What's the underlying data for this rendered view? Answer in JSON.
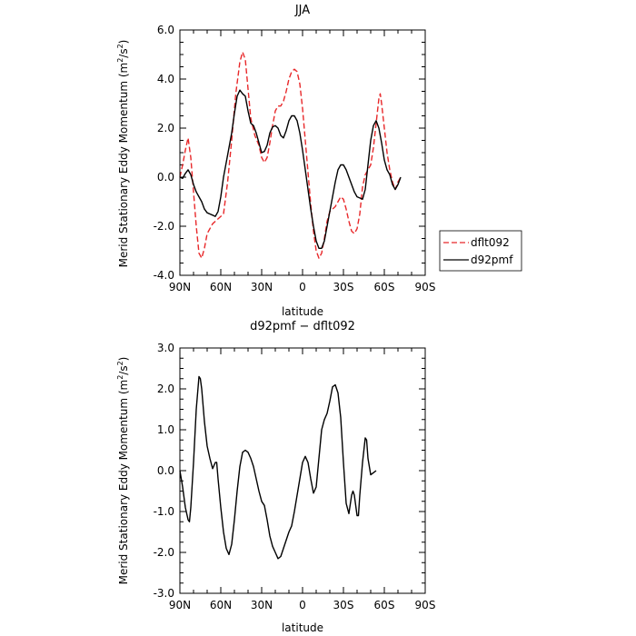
{
  "chart_data": [
    {
      "type": "line",
      "title": "JJA",
      "xlabel": "latitude",
      "ylabel": "Merid Stationary Eddy Momentum (m²/s²)",
      "ylabel_main": "Merid Stationary Eddy Momentum (m",
      "ylabel_sup": "2",
      "ylabel_mid": "/s",
      "ylabel_sup2": "2",
      "ylabel_end": ")",
      "xlim": [
        90,
        -90
      ],
      "ylim": [
        -4.0,
        6.0
      ],
      "xticks": [
        {
          "value": 90,
          "label": "90N"
        },
        {
          "value": 60,
          "label": "60N"
        },
        {
          "value": 30,
          "label": "30N"
        },
        {
          "value": 0,
          "label": "0"
        },
        {
          "value": -30,
          "label": "30S"
        },
        {
          "value": -60,
          "label": "60S"
        },
        {
          "value": -90,
          "label": "90S"
        }
      ],
      "yticks": [
        {
          "value": -4.0,
          "label": "-4.0"
        },
        {
          "value": -2.0,
          "label": "-2.0"
        },
        {
          "value": 0.0,
          "label": "0.0"
        },
        {
          "value": 2.0,
          "label": "2.0"
        },
        {
          "value": 4.0,
          "label": "4.0"
        },
        {
          "value": 6.0,
          "label": "6.0"
        }
      ],
      "legend_position": "right",
      "series": [
        {
          "name": "dflt092",
          "color": "#e8282a",
          "dash": "dashed",
          "points": [
            [
              90,
              0
            ],
            [
              88,
              0.5
            ],
            [
              86,
              1.1
            ],
            [
              84,
              1.6
            ],
            [
              82,
              0.8
            ],
            [
              80,
              -0.6
            ],
            [
              78,
              -2.0
            ],
            [
              76,
              -3.1
            ],
            [
              74,
              -3.3
            ],
            [
              72,
              -2.9
            ],
            [
              70,
              -2.3
            ],
            [
              66,
              -1.9
            ],
            [
              62,
              -1.7
            ],
            [
              58,
              -1.5
            ],
            [
              55,
              -0.2
            ],
            [
              52,
              1.5
            ],
            [
              49,
              3.4
            ],
            [
              46,
              4.7
            ],
            [
              44,
              5.1
            ],
            [
              42,
              4.8
            ],
            [
              40,
              3.6
            ],
            [
              38,
              2.4
            ],
            [
              35,
              1.7
            ],
            [
              32,
              1.3
            ],
            [
              30,
              0.8
            ],
            [
              28,
              0.6
            ],
            [
              26,
              0.8
            ],
            [
              24,
              1.4
            ],
            [
              22,
              2.1
            ],
            [
              20,
              2.7
            ],
            [
              18,
              2.9
            ],
            [
              16,
              2.9
            ],
            [
              14,
              3.1
            ],
            [
              12,
              3.5
            ],
            [
              10,
              4.0
            ],
            [
              8,
              4.3
            ],
            [
              6,
              4.4
            ],
            [
              4,
              4.3
            ],
            [
              2,
              3.8
            ],
            [
              0,
              2.8
            ],
            [
              -2,
              1.5
            ],
            [
              -4,
              0.2
            ],
            [
              -6,
              -1.1
            ],
            [
              -8,
              -2.2
            ],
            [
              -10,
              -3.0
            ],
            [
              -12,
              -3.3
            ],
            [
              -14,
              -3.1
            ],
            [
              -16,
              -2.5
            ],
            [
              -18,
              -1.8
            ],
            [
              -20,
              -1.4
            ],
            [
              -22,
              -1.3
            ],
            [
              -24,
              -1.2
            ],
            [
              -26,
              -1.0
            ],
            [
              -28,
              -0.8
            ],
            [
              -30,
              -0.9
            ],
            [
              -32,
              -1.3
            ],
            [
              -34,
              -1.8
            ],
            [
              -36,
              -2.2
            ],
            [
              -38,
              -2.3
            ],
            [
              -40,
              -2.1
            ],
            [
              -42,
              -1.5
            ],
            [
              -44,
              -0.4
            ],
            [
              -46,
              0.1
            ],
            [
              -48,
              0.3
            ],
            [
              -50,
              0.5
            ],
            [
              -52,
              1.2
            ],
            [
              -54,
              2.2
            ],
            [
              -56,
              3.2
            ],
            [
              -57,
              3.4
            ],
            [
              -58,
              3.0
            ],
            [
              -60,
              2.0
            ],
            [
              -62,
              1.0
            ],
            [
              -64,
              0.3
            ],
            [
              -66,
              -0.2
            ],
            [
              -68,
              -0.5
            ],
            [
              -70,
              -0.2
            ],
            [
              -72,
              0
            ]
          ]
        },
        {
          "name": "d92pmf",
          "color": "#000000",
          "dash": "solid",
          "points": [
            [
              90,
              0
            ],
            [
              88,
              -0.05
            ],
            [
              86,
              0.15
            ],
            [
              84,
              0.3
            ],
            [
              82,
              0.1
            ],
            [
              80,
              -0.3
            ],
            [
              78,
              -0.6
            ],
            [
              76,
              -0.8
            ],
            [
              74,
              -1.0
            ],
            [
              72,
              -1.3
            ],
            [
              70,
              -1.45
            ],
            [
              68,
              -1.5
            ],
            [
              66,
              -1.55
            ],
            [
              64,
              -1.6
            ],
            [
              62,
              -1.4
            ],
            [
              60,
              -0.8
            ],
            [
              58,
              0.0
            ],
            [
              55,
              0.9
            ],
            [
              52,
              1.8
            ],
            [
              50,
              2.6
            ],
            [
              48,
              3.3
            ],
            [
              46,
              3.55
            ],
            [
              44,
              3.4
            ],
            [
              42,
              3.3
            ],
            [
              40,
              2.7
            ],
            [
              38,
              2.2
            ],
            [
              36,
              2.1
            ],
            [
              34,
              1.8
            ],
            [
              32,
              1.4
            ],
            [
              30,
              1.0
            ],
            [
              28,
              1.05
            ],
            [
              26,
              1.3
            ],
            [
              24,
              1.8
            ],
            [
              22,
              2.05
            ],
            [
              20,
              2.1
            ],
            [
              18,
              2.0
            ],
            [
              16,
              1.7
            ],
            [
              14,
              1.6
            ],
            [
              12,
              1.9
            ],
            [
              10,
              2.3
            ],
            [
              8,
              2.5
            ],
            [
              6,
              2.5
            ],
            [
              4,
              2.3
            ],
            [
              2,
              1.8
            ],
            [
              0,
              1.1
            ],
            [
              -2,
              0.3
            ],
            [
              -4,
              -0.5
            ],
            [
              -6,
              -1.3
            ],
            [
              -8,
              -2.0
            ],
            [
              -10,
              -2.6
            ],
            [
              -12,
              -2.9
            ],
            [
              -14,
              -2.9
            ],
            [
              -16,
              -2.6
            ],
            [
              -18,
              -2.0
            ],
            [
              -20,
              -1.4
            ],
            [
              -22,
              -0.8
            ],
            [
              -24,
              -0.2
            ],
            [
              -26,
              0.3
            ],
            [
              -28,
              0.5
            ],
            [
              -30,
              0.5
            ],
            [
              -32,
              0.3
            ],
            [
              -34,
              0.0
            ],
            [
              -36,
              -0.3
            ],
            [
              -38,
              -0.6
            ],
            [
              -40,
              -0.8
            ],
            [
              -42,
              -0.85
            ],
            [
              -44,
              -0.9
            ],
            [
              -46,
              -0.5
            ],
            [
              -48,
              0.5
            ],
            [
              -50,
              1.5
            ],
            [
              -52,
              2.1
            ],
            [
              -54,
              2.3
            ],
            [
              -56,
              2.0
            ],
            [
              -58,
              1.4
            ],
            [
              -60,
              0.7
            ],
            [
              -62,
              0.3
            ],
            [
              -64,
              0.1
            ],
            [
              -66,
              -0.3
            ],
            [
              -68,
              -0.5
            ],
            [
              -70,
              -0.3
            ],
            [
              -72,
              0
            ]
          ]
        }
      ]
    },
    {
      "type": "line",
      "title": "d92pmf − dflt092",
      "xlabel": "latitude",
      "ylabel": "Merid Stationary Eddy Momentum (m²/s²)",
      "ylabel_main": "Merid Stationary Eddy Momentum (m",
      "ylabel_sup": "2",
      "ylabel_mid": "/s",
      "ylabel_sup2": "2",
      "ylabel_end": ")",
      "xlim": [
        90,
        -90
      ],
      "ylim": [
        -3.0,
        3.0
      ],
      "xticks": [
        {
          "value": 90,
          "label": "90N"
        },
        {
          "value": 60,
          "label": "60N"
        },
        {
          "value": 30,
          "label": "30N"
        },
        {
          "value": 0,
          "label": "0"
        },
        {
          "value": -30,
          "label": "30S"
        },
        {
          "value": -60,
          "label": "60S"
        },
        {
          "value": -90,
          "label": "90S"
        }
      ],
      "yticks": [
        {
          "value": -3.0,
          "label": "-3.0"
        },
        {
          "value": -2.0,
          "label": "-2.0"
        },
        {
          "value": -1.0,
          "label": "-1.0"
        },
        {
          "value": 0.0,
          "label": "0.0"
        },
        {
          "value": 1.0,
          "label": "1.0"
        },
        {
          "value": 2.0,
          "label": "2.0"
        },
        {
          "value": 3.0,
          "label": "3.0"
        }
      ],
      "series": [
        {
          "color": "#000000",
          "dash": "solid",
          "points": [
            [
              90,
              0
            ],
            [
              88,
              -0.4
            ],
            [
              86,
              -0.9
            ],
            [
              84,
              -1.2
            ],
            [
              83,
              -1.25
            ],
            [
              82,
              -0.9
            ],
            [
              80,
              0.2
            ],
            [
              78,
              1.5
            ],
            [
              76,
              2.3
            ],
            [
              75,
              2.25
            ],
            [
              74,
              2.0
            ],
            [
              72,
              1.2
            ],
            [
              70,
              0.6
            ],
            [
              68,
              0.3
            ],
            [
              66,
              0.05
            ],
            [
              64,
              0.2
            ],
            [
              63,
              0.2
            ],
            [
              62,
              -0.2
            ],
            [
              60,
              -0.9
            ],
            [
              58,
              -1.5
            ],
            [
              56,
              -1.9
            ],
            [
              54,
              -2.05
            ],
            [
              52,
              -1.8
            ],
            [
              50,
              -1.2
            ],
            [
              48,
              -0.5
            ],
            [
              46,
              0.1
            ],
            [
              44,
              0.45
            ],
            [
              42,
              0.5
            ],
            [
              40,
              0.45
            ],
            [
              38,
              0.3
            ],
            [
              36,
              0.1
            ],
            [
              34,
              -0.2
            ],
            [
              32,
              -0.5
            ],
            [
              30,
              -0.75
            ],
            [
              28,
              -0.85
            ],
            [
              26,
              -1.2
            ],
            [
              24,
              -1.6
            ],
            [
              22,
              -1.85
            ],
            [
              20,
              -2.0
            ],
            [
              18,
              -2.15
            ],
            [
              16,
              -2.1
            ],
            [
              14,
              -1.9
            ],
            [
              12,
              -1.7
            ],
            [
              10,
              -1.5
            ],
            [
              8,
              -1.35
            ],
            [
              6,
              -1.0
            ],
            [
              4,
              -0.6
            ],
            [
              2,
              -0.2
            ],
            [
              0,
              0.2
            ],
            [
              -2,
              0.35
            ],
            [
              -4,
              0.2
            ],
            [
              -6,
              -0.2
            ],
            [
              -8,
              -0.55
            ],
            [
              -10,
              -0.4
            ],
            [
              -12,
              0.3
            ],
            [
              -14,
              1.0
            ],
            [
              -16,
              1.25
            ],
            [
              -18,
              1.4
            ],
            [
              -20,
              1.7
            ],
            [
              -22,
              2.05
            ],
            [
              -24,
              2.1
            ],
            [
              -26,
              1.9
            ],
            [
              -28,
              1.3
            ],
            [
              -30,
              0.2
            ],
            [
              -32,
              -0.8
            ],
            [
              -34,
              -1.05
            ],
            [
              -36,
              -0.6
            ],
            [
              -37,
              -0.5
            ],
            [
              -38,
              -0.6
            ],
            [
              -40,
              -1.1
            ],
            [
              -41,
              -1.1
            ],
            [
              -42,
              -0.6
            ],
            [
              -44,
              0.2
            ],
            [
              -46,
              0.8
            ],
            [
              -47,
              0.75
            ],
            [
              -48,
              0.3
            ],
            [
              -50,
              -0.1
            ],
            [
              -52,
              -0.05
            ],
            [
              -54,
              0
            ]
          ]
        }
      ]
    }
  ]
}
